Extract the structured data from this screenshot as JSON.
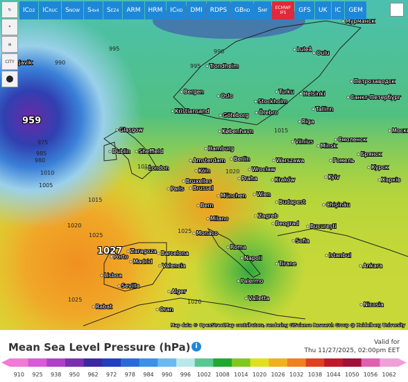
{
  "toolbar": {
    "models": [
      {
        "name": "IC",
        "sub": "D2"
      },
      {
        "name": "IC",
        "sub": "RUC"
      },
      {
        "name": "S",
        "sub": "NOW"
      },
      {
        "name": "S",
        "sub": "4x4"
      },
      {
        "name": "S",
        "sub": "EZ4"
      },
      {
        "name": "ARM"
      },
      {
        "name": "HRM"
      },
      {
        "name": "IC",
        "sub": "HD"
      },
      {
        "name": "DMI"
      },
      {
        "name": "RDPS"
      },
      {
        "name": "GB",
        "sub": "HD"
      },
      {
        "name": "S",
        "sub": "MF"
      },
      {
        "name": "ECMWF",
        "sub": "IFS",
        "selected": true
      },
      {
        "name": "GFS"
      },
      {
        "name": "UK"
      },
      {
        "name": "IC"
      },
      {
        "name": "GEM"
      }
    ]
  },
  "sidebar": {
    "city_button": "CITY"
  },
  "map": {
    "cities": [
      "Reykjavik",
      "Trondheim",
      "Bergen",
      "Oslo",
      "Stockholm",
      "Turku",
      "Helsinki",
      "Kristiansand",
      "Göteborg",
      "Örebro",
      "Tallinn",
      "Riga",
      "Glasgow",
      "København",
      "Vilnius",
      "Dublin",
      "Sheffield",
      "Hamburg",
      "Amsterdam",
      "Berlin",
      "Warszawa",
      "Minsk",
      "London",
      "Köln",
      "Wrocław",
      "Kyiv",
      "Bruxelles",
      "Praha",
      "Kraków",
      "Paris",
      "Brussel",
      "München",
      "Wien",
      "Budapest",
      "Chișinău",
      "Bern",
      "Milano",
      "Zagreb",
      "Beograd",
      "București",
      "Monaco",
      "Roma",
      "Sofia",
      "Istanbul",
      "Porto",
      "Zaragoza",
      "Barcelona",
      "Madrid",
      "Valencia",
      "Napoli",
      "Tirane",
      "Lisboa",
      "Sevilla",
      "Palermo",
      "Alger",
      "Ankara",
      "Valletta",
      "Rabat",
      "Oran",
      "Nicosia",
      "Москва",
      "Санкт-Петербург",
      "Петрозаводск",
      "Мурманск",
      "Смоленск",
      "Брянск",
      "Курск",
      "Харків",
      "Гомель",
      "Luleå",
      "Oulu"
    ],
    "pressure_labels": [
      "995",
      "990",
      "959",
      "990",
      "995",
      "1015",
      "1010",
      "1020",
      "1015",
      "1020",
      "1025",
      "1027",
      "1025",
      "1025",
      "1020",
      "1010",
      "1005",
      "985",
      "980",
      "975"
    ],
    "attribution": "Map data © OpenStreetMap contributors, rendering GIScience Research Group @ Heidelberg University"
  },
  "legend": {
    "title": "Mean Sea Level Pressure (hPa)",
    "info": "i",
    "valid_label": "Valid for",
    "valid_time": "Thu 11/27/2025, 02:00pm EET",
    "scale": [
      {
        "label": "910",
        "color": "#f07ad8"
      },
      {
        "label": "925",
        "color": "#d85ad8"
      },
      {
        "label": "938",
        "color": "#b040c8"
      },
      {
        "label": "950",
        "color": "#7a30b0"
      },
      {
        "label": "962",
        "color": "#3c2aa0"
      },
      {
        "label": "972",
        "color": "#2040c0"
      },
      {
        "label": "978",
        "color": "#2a6ad8"
      },
      {
        "label": "984",
        "color": "#3c90e8"
      },
      {
        "label": "990",
        "color": "#6cb8f0"
      },
      {
        "label": "996",
        "color": "#b8e8e8"
      },
      {
        "label": "1002",
        "color": "#58c890"
      },
      {
        "label": "1008",
        "color": "#20a830"
      },
      {
        "label": "1014",
        "color": "#80c820"
      },
      {
        "label": "1020",
        "color": "#e0e020"
      },
      {
        "label": "1026",
        "color": "#f0b020"
      },
      {
        "label": "1032",
        "color": "#f08020"
      },
      {
        "label": "1038",
        "color": "#e04020"
      },
      {
        "label": "1044",
        "color": "#c01828"
      },
      {
        "label": "1050",
        "color": "#a01038"
      },
      {
        "label": "1056",
        "color": "#e060b0"
      },
      {
        "label": "1062",
        "color": "#f0a0d8"
      }
    ]
  }
}
